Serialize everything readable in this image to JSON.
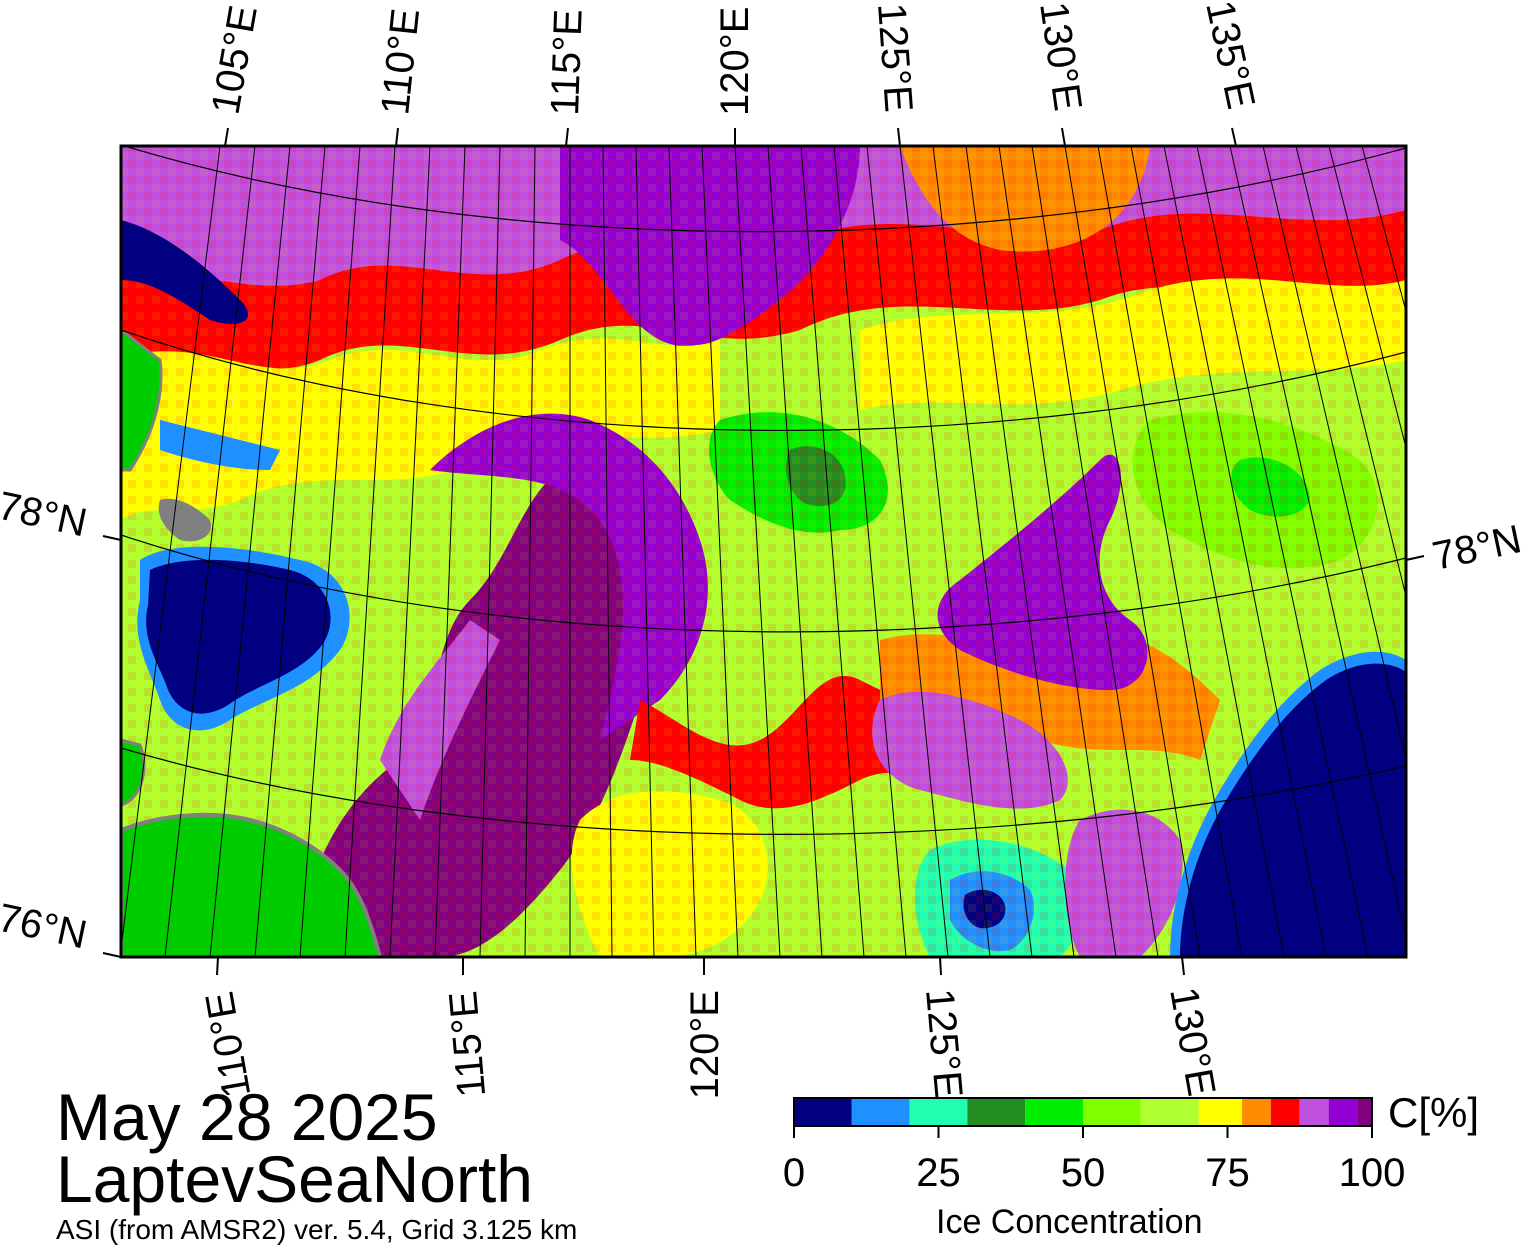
{
  "header": {
    "date": "May 28 2025",
    "region": "LaptevSeaNorth",
    "subtitle": "ASI (from AMSR2) ver. 5.4,  Grid 3.125 km"
  },
  "map": {
    "top_lon_labels": [
      "105°E",
      "110°E",
      "115°E",
      "120°E",
      "125°E",
      "130°E",
      "135°E"
    ],
    "bottom_lon_labels": [
      "110°E",
      "115°E",
      "120°E",
      "125°E",
      "130°E"
    ],
    "left_lat_labels": [
      "78°N",
      "76°N"
    ],
    "right_lat_labels": [
      "78°N"
    ],
    "colors": {
      "land": "#00cc00",
      "coast": "#808080",
      "open_water": "#000080",
      "graticule": "#000000"
    }
  },
  "colorbar": {
    "title": "Ice Concentration",
    "unit": "C[%]",
    "ticks": [
      "0",
      "25",
      "50",
      "75",
      "100"
    ],
    "bins": [
      {
        "range": "0-10",
        "color": "#000080"
      },
      {
        "range": "10-20",
        "color": "#1e90ff"
      },
      {
        "range": "20-30",
        "color": "#20ffb0"
      },
      {
        "range": "30-40",
        "color": "#228b22"
      },
      {
        "range": "40-50",
        "color": "#00ee00"
      },
      {
        "range": "50-60",
        "color": "#7fff00"
      },
      {
        "range": "60-70",
        "color": "#b0ff30"
      },
      {
        "range": "70-77.5",
        "color": "#ffff00"
      },
      {
        "range": "77.5-82.5",
        "color": "#ff8c00"
      },
      {
        "range": "82.5-87.5",
        "color": "#ff0000"
      },
      {
        "range": "87.5-92.5",
        "color": "#c050e0"
      },
      {
        "range": "92.5-97.5",
        "color": "#9400d3"
      },
      {
        "range": "97.5-100",
        "color": "#800080"
      }
    ]
  }
}
